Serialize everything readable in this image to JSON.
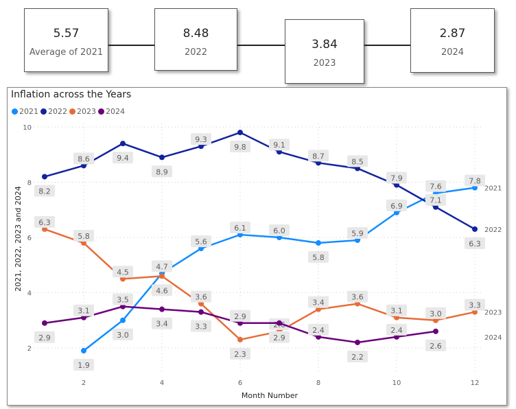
{
  "cards": [
    {
      "value": "5.57",
      "label": "Average of 2021"
    },
    {
      "value": "8.48",
      "label": "2022"
    },
    {
      "value": "3.84",
      "label": "2023"
    },
    {
      "value": "2.87",
      "label": "2024"
    }
  ],
  "chart_data": {
    "type": "line",
    "title": "Inflation across the Years",
    "xlabel": "Month Number",
    "ylabel": "2021, 2022, 2023 and 2024",
    "x": [
      1,
      2,
      3,
      4,
      5,
      6,
      7,
      8,
      9,
      10,
      11,
      12
    ],
    "xticks": [
      "2",
      "4",
      "6",
      "8",
      "10",
      "12"
    ],
    "yticks": [
      "2",
      "4",
      "6",
      "8",
      "10"
    ],
    "ylim": [
      1.5,
      10
    ],
    "grid": true,
    "legend": "top-left",
    "series": [
      {
        "name": "2021",
        "color": "#118DFF",
        "values": [
          null,
          1.9,
          3.0,
          4.7,
          5.6,
          6.1,
          6.0,
          5.8,
          5.9,
          6.9,
          7.6,
          7.8
        ]
      },
      {
        "name": "2022",
        "color": "#12239E",
        "values": [
          8.2,
          8.6,
          9.4,
          8.9,
          9.3,
          9.8,
          9.1,
          8.7,
          8.5,
          7.9,
          7.1,
          6.3
        ]
      },
      {
        "name": "2023",
        "color": "#E66C37",
        "values": [
          6.3,
          5.8,
          4.5,
          4.6,
          3.6,
          2.3,
          2.6,
          3.4,
          3.6,
          3.1,
          3.0,
          3.3
        ]
      },
      {
        "name": "2024",
        "color": "#6B007B",
        "values": [
          2.9,
          3.1,
          3.5,
          3.4,
          3.3,
          2.9,
          2.9,
          2.4,
          2.2,
          2.4,
          2.6,
          null
        ]
      }
    ]
  }
}
